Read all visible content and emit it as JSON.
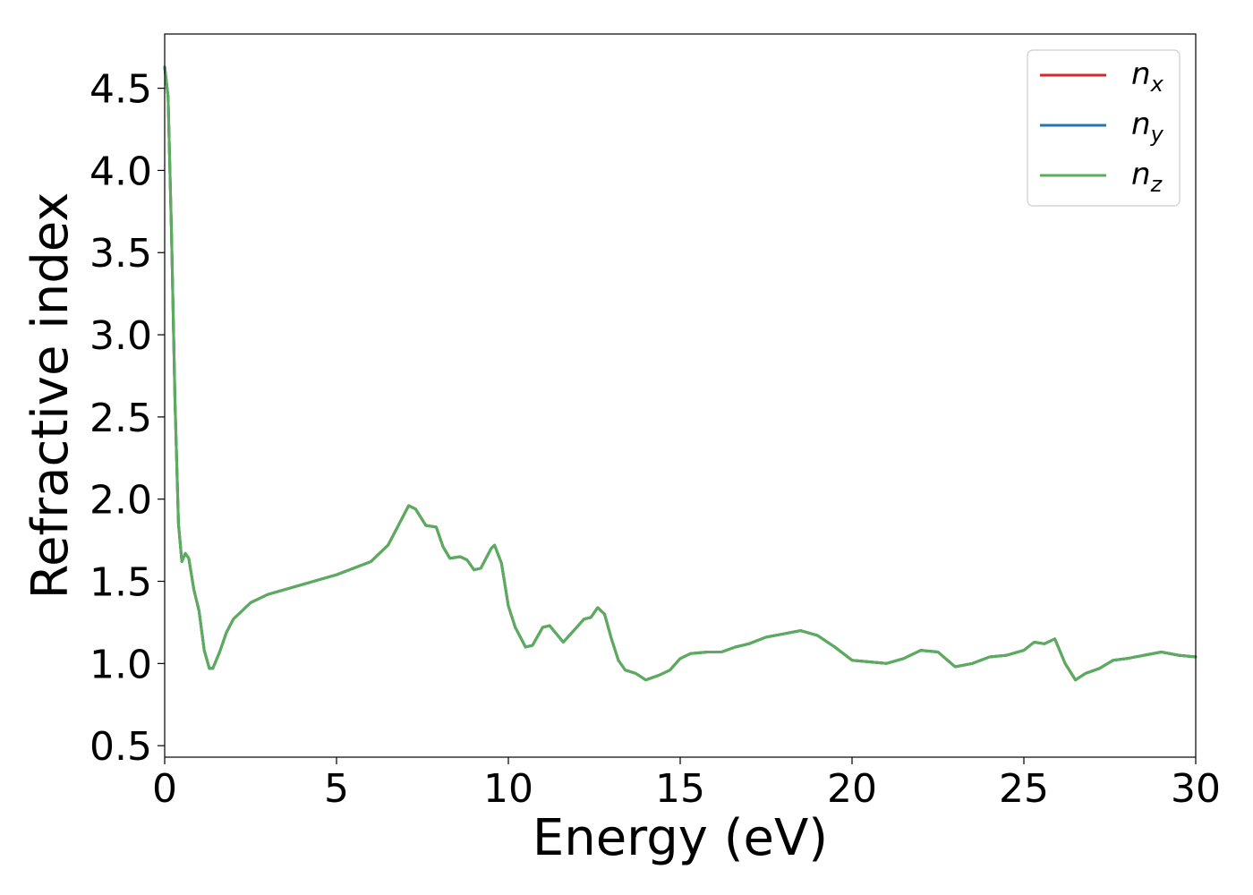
{
  "chart_data": {
    "type": "line",
    "xlabel": "Energy (eV)",
    "ylabel": "Refractive index",
    "xlim": [
      0,
      30
    ],
    "ylim": [
      0.43,
      4.83
    ],
    "x_ticks": [
      "0",
      "5",
      "10",
      "15",
      "20",
      "25",
      "30"
    ],
    "y_ticks": [
      "0.5",
      "1.0",
      "1.5",
      "2.0",
      "2.5",
      "3.0",
      "3.5",
      "4.0",
      "4.5"
    ],
    "grid": false,
    "legend": {
      "placement": "top-right"
    },
    "series": [
      {
        "name_base": "n",
        "name_sub": "x",
        "color": "#d62728",
        "points": [
          [
            0,
            4.63
          ],
          [
            0.1,
            4.45
          ],
          [
            0.2,
            3.6
          ],
          [
            0.3,
            2.6
          ],
          [
            0.4,
            1.85
          ],
          [
            0.5,
            1.62
          ],
          [
            0.6,
            1.67
          ],
          [
            0.7,
            1.64
          ],
          [
            0.85,
            1.45
          ],
          [
            1.0,
            1.32
          ],
          [
            1.15,
            1.08
          ],
          [
            1.3,
            0.97
          ],
          [
            1.4,
            0.97
          ],
          [
            1.6,
            1.07
          ],
          [
            1.8,
            1.19
          ],
          [
            2.0,
            1.27
          ],
          [
            2.5,
            1.37
          ],
          [
            3.0,
            1.42
          ],
          [
            4.0,
            1.48
          ],
          [
            5.0,
            1.54
          ],
          [
            6.0,
            1.62
          ],
          [
            6.5,
            1.72
          ],
          [
            6.8,
            1.84
          ],
          [
            7.1,
            1.96
          ],
          [
            7.3,
            1.94
          ],
          [
            7.6,
            1.84
          ],
          [
            7.9,
            1.83
          ],
          [
            8.1,
            1.71
          ],
          [
            8.3,
            1.64
          ],
          [
            8.6,
            1.65
          ],
          [
            8.8,
            1.63
          ],
          [
            9.0,
            1.57
          ],
          [
            9.2,
            1.58
          ],
          [
            9.5,
            1.7
          ],
          [
            9.6,
            1.72
          ],
          [
            9.8,
            1.61
          ],
          [
            10.0,
            1.35
          ],
          [
            10.2,
            1.22
          ],
          [
            10.5,
            1.1
          ],
          [
            10.7,
            1.11
          ],
          [
            11.0,
            1.22
          ],
          [
            11.2,
            1.23
          ],
          [
            11.6,
            1.13
          ],
          [
            11.9,
            1.2
          ],
          [
            12.2,
            1.27
          ],
          [
            12.4,
            1.28
          ],
          [
            12.6,
            1.34
          ],
          [
            12.8,
            1.3
          ],
          [
            13.0,
            1.15
          ],
          [
            13.2,
            1.02
          ],
          [
            13.4,
            0.96
          ],
          [
            13.7,
            0.94
          ],
          [
            14.0,
            0.9
          ],
          [
            14.4,
            0.93
          ],
          [
            14.7,
            0.96
          ],
          [
            15.0,
            1.03
          ],
          [
            15.3,
            1.06
          ],
          [
            15.8,
            1.07
          ],
          [
            16.2,
            1.07
          ],
          [
            16.6,
            1.1
          ],
          [
            17.0,
            1.12
          ],
          [
            17.5,
            1.16
          ],
          [
            18.0,
            1.18
          ],
          [
            18.5,
            1.2
          ],
          [
            19.0,
            1.17
          ],
          [
            19.5,
            1.1
          ],
          [
            20.0,
            1.02
          ],
          [
            20.5,
            1.01
          ],
          [
            21.0,
            1.0
          ],
          [
            21.5,
            1.03
          ],
          [
            22.0,
            1.08
          ],
          [
            22.5,
            1.07
          ],
          [
            23.0,
            0.98
          ],
          [
            23.5,
            1.0
          ],
          [
            24.0,
            1.04
          ],
          [
            24.5,
            1.05
          ],
          [
            25.0,
            1.08
          ],
          [
            25.3,
            1.13
          ],
          [
            25.6,
            1.12
          ],
          [
            25.9,
            1.15
          ],
          [
            26.2,
            1.0
          ],
          [
            26.5,
            0.9
          ],
          [
            26.8,
            0.94
          ],
          [
            27.2,
            0.97
          ],
          [
            27.6,
            1.02
          ],
          [
            28.0,
            1.03
          ],
          [
            28.5,
            1.05
          ],
          [
            29.0,
            1.07
          ],
          [
            29.5,
            1.05
          ],
          [
            30.0,
            1.04
          ]
        ]
      },
      {
        "name_base": "n",
        "name_sub": "y",
        "color": "#1f77b4",
        "points": [
          [
            0,
            4.63
          ],
          [
            0.1,
            4.45
          ],
          [
            0.2,
            3.6
          ],
          [
            0.3,
            2.6
          ],
          [
            0.4,
            1.85
          ],
          [
            0.5,
            1.62
          ],
          [
            0.6,
            1.67
          ],
          [
            0.7,
            1.64
          ],
          [
            0.85,
            1.45
          ],
          [
            1.0,
            1.32
          ],
          [
            1.15,
            1.08
          ],
          [
            1.3,
            0.97
          ],
          [
            1.4,
            0.97
          ],
          [
            1.6,
            1.07
          ],
          [
            1.8,
            1.19
          ],
          [
            2.0,
            1.27
          ],
          [
            2.5,
            1.37
          ],
          [
            3.0,
            1.42
          ],
          [
            4.0,
            1.48
          ],
          [
            5.0,
            1.54
          ],
          [
            6.0,
            1.62
          ],
          [
            6.5,
            1.72
          ],
          [
            6.8,
            1.84
          ],
          [
            7.1,
            1.96
          ],
          [
            7.3,
            1.94
          ],
          [
            7.6,
            1.84
          ],
          [
            7.9,
            1.83
          ],
          [
            8.1,
            1.71
          ],
          [
            8.3,
            1.64
          ],
          [
            8.6,
            1.65
          ],
          [
            8.8,
            1.63
          ],
          [
            9.0,
            1.57
          ],
          [
            9.2,
            1.58
          ],
          [
            9.5,
            1.7
          ],
          [
            9.6,
            1.72
          ],
          [
            9.8,
            1.61
          ],
          [
            10.0,
            1.35
          ],
          [
            10.2,
            1.22
          ],
          [
            10.5,
            1.1
          ],
          [
            10.7,
            1.11
          ],
          [
            11.0,
            1.22
          ],
          [
            11.2,
            1.23
          ],
          [
            11.6,
            1.13
          ],
          [
            11.9,
            1.2
          ],
          [
            12.2,
            1.27
          ],
          [
            12.4,
            1.28
          ],
          [
            12.6,
            1.34
          ],
          [
            12.8,
            1.3
          ],
          [
            13.0,
            1.15
          ],
          [
            13.2,
            1.02
          ],
          [
            13.4,
            0.96
          ],
          [
            13.7,
            0.94
          ],
          [
            14.0,
            0.9
          ],
          [
            14.4,
            0.93
          ],
          [
            14.7,
            0.96
          ],
          [
            15.0,
            1.03
          ],
          [
            15.3,
            1.06
          ],
          [
            15.8,
            1.07
          ],
          [
            16.2,
            1.07
          ],
          [
            16.6,
            1.1
          ],
          [
            17.0,
            1.12
          ],
          [
            17.5,
            1.16
          ],
          [
            18.0,
            1.18
          ],
          [
            18.5,
            1.2
          ],
          [
            19.0,
            1.17
          ],
          [
            19.5,
            1.1
          ],
          [
            20.0,
            1.02
          ],
          [
            20.5,
            1.01
          ],
          [
            21.0,
            1.0
          ],
          [
            21.5,
            1.03
          ],
          [
            22.0,
            1.08
          ],
          [
            22.5,
            1.07
          ],
          [
            23.0,
            0.98
          ],
          [
            23.5,
            1.0
          ],
          [
            24.0,
            1.04
          ],
          [
            24.5,
            1.05
          ],
          [
            25.0,
            1.08
          ],
          [
            25.3,
            1.13
          ],
          [
            25.6,
            1.12
          ],
          [
            25.9,
            1.15
          ],
          [
            26.2,
            1.0
          ],
          [
            26.5,
            0.9
          ],
          [
            26.8,
            0.94
          ],
          [
            27.2,
            0.97
          ],
          [
            27.6,
            1.02
          ],
          [
            28.0,
            1.03
          ],
          [
            28.5,
            1.05
          ],
          [
            29.0,
            1.07
          ],
          [
            29.5,
            1.05
          ],
          [
            30.0,
            1.04
          ]
        ]
      },
      {
        "name_base": "n",
        "name_sub": "z",
        "color": "#5aad5a",
        "points": [
          [
            0,
            4.63
          ],
          [
            0.1,
            4.45
          ],
          [
            0.2,
            3.6
          ],
          [
            0.3,
            2.6
          ],
          [
            0.4,
            1.85
          ],
          [
            0.5,
            1.62
          ],
          [
            0.6,
            1.67
          ],
          [
            0.7,
            1.64
          ],
          [
            0.85,
            1.45
          ],
          [
            1.0,
            1.32
          ],
          [
            1.15,
            1.08
          ],
          [
            1.3,
            0.97
          ],
          [
            1.4,
            0.97
          ],
          [
            1.6,
            1.07
          ],
          [
            1.8,
            1.19
          ],
          [
            2.0,
            1.27
          ],
          [
            2.5,
            1.37
          ],
          [
            3.0,
            1.42
          ],
          [
            4.0,
            1.48
          ],
          [
            5.0,
            1.54
          ],
          [
            6.0,
            1.62
          ],
          [
            6.5,
            1.72
          ],
          [
            6.8,
            1.84
          ],
          [
            7.1,
            1.96
          ],
          [
            7.3,
            1.94
          ],
          [
            7.6,
            1.84
          ],
          [
            7.9,
            1.83
          ],
          [
            8.1,
            1.71
          ],
          [
            8.3,
            1.64
          ],
          [
            8.6,
            1.65
          ],
          [
            8.8,
            1.63
          ],
          [
            9.0,
            1.57
          ],
          [
            9.2,
            1.58
          ],
          [
            9.5,
            1.7
          ],
          [
            9.6,
            1.72
          ],
          [
            9.8,
            1.61
          ],
          [
            10.0,
            1.35
          ],
          [
            10.2,
            1.22
          ],
          [
            10.5,
            1.1
          ],
          [
            10.7,
            1.11
          ],
          [
            11.0,
            1.22
          ],
          [
            11.2,
            1.23
          ],
          [
            11.6,
            1.13
          ],
          [
            11.9,
            1.2
          ],
          [
            12.2,
            1.27
          ],
          [
            12.4,
            1.28
          ],
          [
            12.6,
            1.34
          ],
          [
            12.8,
            1.3
          ],
          [
            13.0,
            1.15
          ],
          [
            13.2,
            1.02
          ],
          [
            13.4,
            0.96
          ],
          [
            13.7,
            0.94
          ],
          [
            14.0,
            0.9
          ],
          [
            14.4,
            0.93
          ],
          [
            14.7,
            0.96
          ],
          [
            15.0,
            1.03
          ],
          [
            15.3,
            1.06
          ],
          [
            15.8,
            1.07
          ],
          [
            16.2,
            1.07
          ],
          [
            16.6,
            1.1
          ],
          [
            17.0,
            1.12
          ],
          [
            17.5,
            1.16
          ],
          [
            18.0,
            1.18
          ],
          [
            18.5,
            1.2
          ],
          [
            19.0,
            1.17
          ],
          [
            19.5,
            1.1
          ],
          [
            20.0,
            1.02
          ],
          [
            20.5,
            1.01
          ],
          [
            21.0,
            1.0
          ],
          [
            21.5,
            1.03
          ],
          [
            22.0,
            1.08
          ],
          [
            22.5,
            1.07
          ],
          [
            23.0,
            0.98
          ],
          [
            23.5,
            1.0
          ],
          [
            24.0,
            1.04
          ],
          [
            24.5,
            1.05
          ],
          [
            25.0,
            1.08
          ],
          [
            25.3,
            1.13
          ],
          [
            25.6,
            1.12
          ],
          [
            25.9,
            1.15
          ],
          [
            26.2,
            1.0
          ],
          [
            26.5,
            0.9
          ],
          [
            26.8,
            0.94
          ],
          [
            27.2,
            0.97
          ],
          [
            27.6,
            1.02
          ],
          [
            28.0,
            1.03
          ],
          [
            28.5,
            1.05
          ],
          [
            29.0,
            1.07
          ],
          [
            29.5,
            1.05
          ],
          [
            30.0,
            1.04
          ]
        ]
      }
    ]
  }
}
